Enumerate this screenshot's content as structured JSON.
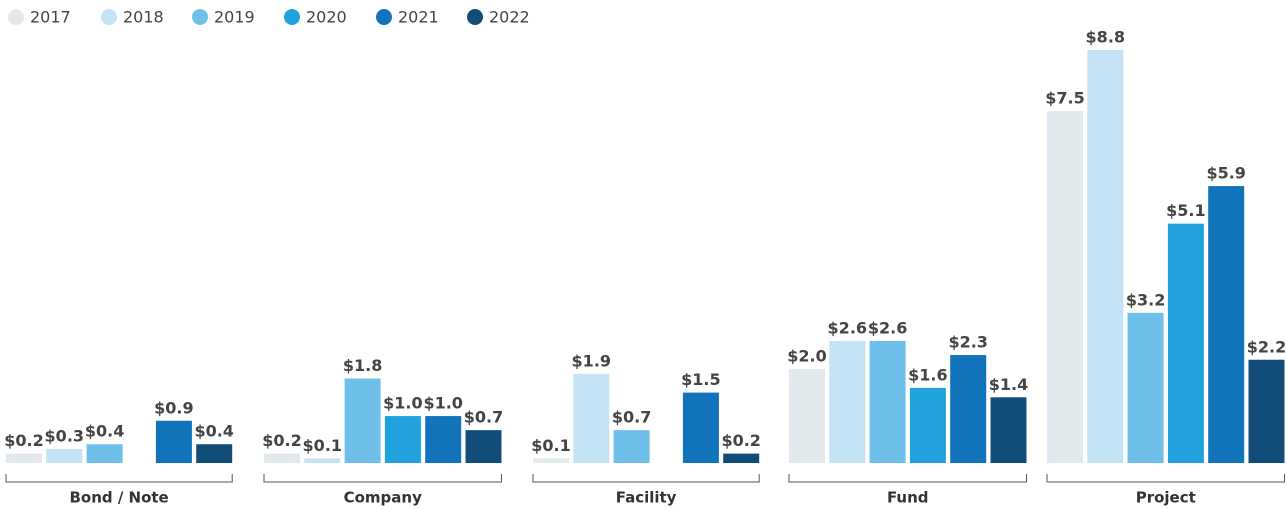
{
  "chart_data": {
    "type": "bar",
    "categories": [
      "Bond / Note",
      "Company",
      "Facility",
      "Fund",
      "Project"
    ],
    "series": [
      {
        "name": "2017",
        "color": "#e2e9ed",
        "values": [
          0.2,
          0.2,
          0.1,
          2.0,
          7.5
        ],
        "value_labels": [
          "$0.2",
          "$0.2",
          "$0.1",
          "$2.0",
          "$7.5"
        ]
      },
      {
        "name": "2018",
        "color": "#c4e3f4",
        "values": [
          0.3,
          0.1,
          1.9,
          2.6,
          8.8
        ],
        "value_labels": [
          "$0.3",
          "$0.1",
          "$1.9",
          "$2.6",
          "$8.8"
        ]
      },
      {
        "name": "2019",
        "color": "#6ec0ea",
        "values": [
          0.4,
          1.8,
          0.7,
          2.6,
          3.2
        ],
        "value_labels": [
          "$0.4",
          "$1.8",
          "$0.7",
          "$2.6",
          "$3.2"
        ]
      },
      {
        "name": "2020",
        "color": "#21a2dc",
        "values": [
          null,
          1.0,
          null,
          1.6,
          5.1
        ],
        "value_labels": [
          null,
          "$1.0",
          null,
          "$1.6",
          "$5.1"
        ]
      },
      {
        "name": "2021",
        "color": "#1173ba",
        "values": [
          0.9,
          1.0,
          1.5,
          2.3,
          5.9
        ],
        "value_labels": [
          "$0.9",
          "$1.0",
          "$1.5",
          "$2.3",
          "$5.9"
        ]
      },
      {
        "name": "2022",
        "color": "#124d79",
        "values": [
          0.4,
          0.7,
          0.2,
          1.4,
          2.2
        ],
        "value_labels": [
          "$0.4",
          "$0.7",
          "$0.2",
          "$1.4",
          "$2.2"
        ]
      }
    ],
    "legend": "top-left"
  }
}
